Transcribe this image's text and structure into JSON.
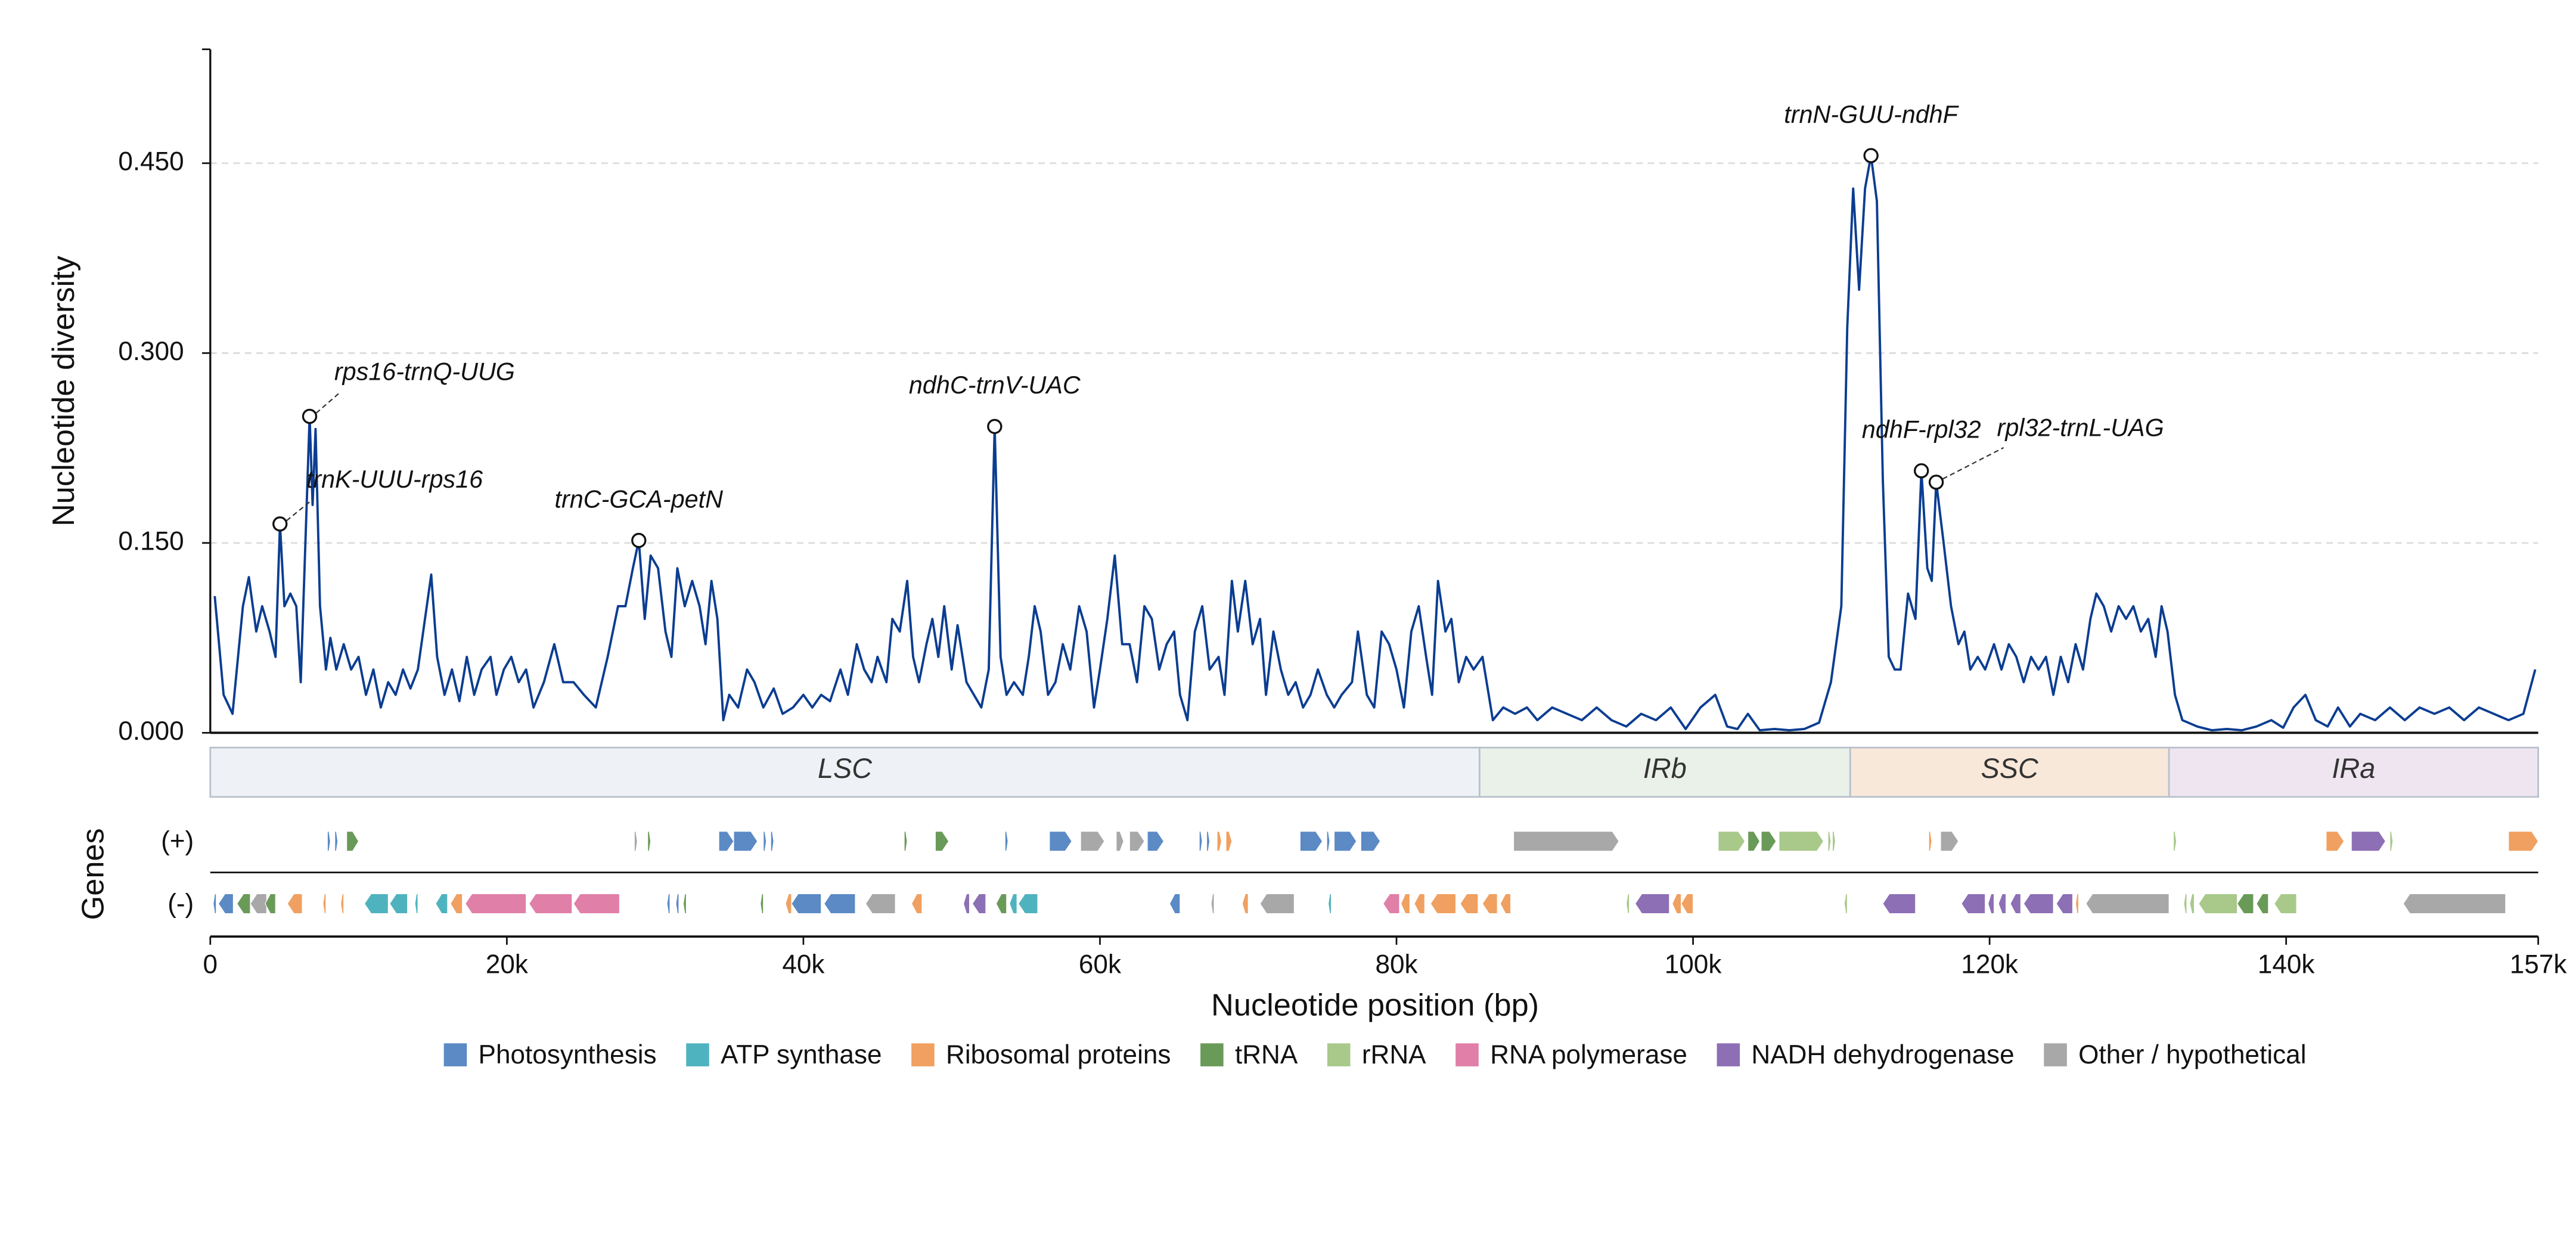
{
  "chart_data": {
    "type": "line",
    "y_label": "Nucleotide diversity",
    "x_label": "Nucleotide position (bp)",
    "genes_label": "Genes",
    "color": "#0b3d91",
    "grid": true,
    "xlim": [
      0,
      157000
    ],
    "ylim": [
      0,
      0.54
    ],
    "xticks": [
      0,
      {
        "value": 20000,
        "label": "20k"
      },
      {
        "value": 40000,
        "label": "40k"
      },
      {
        "value": 60000,
        "label": "60k"
      },
      {
        "value": 80000,
        "label": "80k"
      },
      {
        "value": 100000,
        "label": "100k"
      },
      {
        "value": 120000,
        "label": "120k"
      },
      {
        "value": 140000,
        "label": "140k"
      },
      {
        "value": 157000,
        "label": "157k"
      }
    ],
    "yticks": [
      {
        "value": 0,
        "label": "0.000"
      },
      {
        "value": 0.15,
        "label": "0.150"
      },
      {
        "value": 0.3,
        "label": "0.300"
      },
      {
        "value": 0.45,
        "label": "0.450"
      }
    ],
    "x": [
      300,
      900,
      1500,
      2200,
      2600,
      3100,
      3500,
      4000,
      4400,
      4700,
      5000,
      5400,
      5800,
      6100,
      6700,
      6900,
      7100,
      7400,
      7800,
      8100,
      8500,
      9000,
      9500,
      10000,
      10500,
      11000,
      11500,
      12000,
      12500,
      13000,
      13500,
      14000,
      14600,
      14900,
      15300,
      15800,
      16300,
      16800,
      17300,
      17800,
      18300,
      18900,
      19300,
      19800,
      20300,
      20800,
      21300,
      21800,
      22500,
      23200,
      23800,
      24500,
      25200,
      26000,
      26800,
      27500,
      28000,
      28500,
      28900,
      29300,
      29700,
      30200,
      30700,
      31100,
      31500,
      32000,
      32500,
      33000,
      33400,
      33800,
      34200,
      34600,
      35000,
      35600,
      36200,
      36700,
      37300,
      38000,
      38600,
      39300,
      40000,
      40600,
      41200,
      41800,
      42500,
      43000,
      43600,
      44100,
      44600,
      45000,
      45600,
      46000,
      46500,
      47000,
      47400,
      47800,
      48300,
      48700,
      49100,
      49500,
      50000,
      50400,
      51000,
      51500,
      52000,
      52500,
      52900,
      53300,
      53700,
      54200,
      54800,
      55200,
      55600,
      56000,
      56500,
      57000,
      57500,
      58000,
      58600,
      59100,
      59600,
      60000,
      60500,
      61000,
      61500,
      62000,
      62500,
      63000,
      63500,
      64000,
      64500,
      65000,
      65400,
      65900,
      66400,
      66900,
      67400,
      68000,
      68400,
      68900,
      69300,
      69800,
      70300,
      70800,
      71200,
      71700,
      72200,
      72700,
      73200,
      73700,
      74200,
      74700,
      75300,
      75800,
      76300,
      77000,
      77400,
      78000,
      78500,
      79000,
      79500,
      80000,
      80500,
      81000,
      81500,
      82000,
      82400,
      82800,
      83300,
      83700,
      84200,
      84700,
      85200,
      85800,
      86500,
      87200,
      88000,
      88800,
      89500,
      90500,
      91500,
      92500,
      93500,
      94500,
      95500,
      96500,
      97500,
      98500,
      99500,
      100500,
      101500,
      102300,
      103000,
      103700,
      104500,
      105500,
      106500,
      107500,
      108500,
      109300,
      110000,
      110400,
      110800,
      111200,
      111600,
      112000,
      112400,
      112800,
      113200,
      113600,
      114000,
      114500,
      115000,
      115400,
      115800,
      116100,
      116400,
      116900,
      117400,
      117900,
      118300,
      118700,
      119200,
      119700,
      120300,
      120800,
      121300,
      121800,
      122300,
      122800,
      123300,
      123800,
      124300,
      124800,
      125300,
      125800,
      126300,
      126800,
      127200,
      127700,
      128200,
      128700,
      129200,
      129700,
      130200,
      130700,
      131200,
      131600,
      132000,
      132500,
      133000,
      134000,
      135000,
      136000,
      137000,
      138000,
      139000,
      139800,
      140500,
      141300,
      142000,
      142800,
      143500,
      144300,
      145000,
      146000,
      147000,
      148000,
      149000,
      150000,
      151000,
      152000,
      153000,
      154000,
      155000,
      156000,
      156800
    ],
    "values": [
      0.108,
      0.03,
      0.015,
      0.1,
      0.123,
      0.08,
      0.1,
      0.08,
      0.06,
      0.165,
      0.1,
      0.11,
      0.1,
      0.04,
      0.25,
      0.18,
      0.24,
      0.1,
      0.05,
      0.075,
      0.05,
      0.07,
      0.05,
      0.06,
      0.03,
      0.05,
      0.02,
      0.04,
      0.03,
      0.05,
      0.035,
      0.05,
      0.1,
      0.125,
      0.06,
      0.03,
      0.05,
      0.025,
      0.06,
      0.03,
      0.05,
      0.06,
      0.03,
      0.05,
      0.06,
      0.04,
      0.05,
      0.02,
      0.04,
      0.07,
      0.04,
      0.04,
      0.03,
      0.02,
      0.06,
      0.1,
      0.1,
      0.13,
      0.152,
      0.09,
      0.14,
      0.13,
      0.08,
      0.06,
      0.13,
      0.1,
      0.12,
      0.1,
      0.07,
      0.12,
      0.09,
      0.01,
      0.03,
      0.02,
      0.05,
      0.04,
      0.02,
      0.035,
      0.015,
      0.02,
      0.03,
      0.02,
      0.03,
      0.025,
      0.05,
      0.03,
      0.07,
      0.05,
      0.04,
      0.06,
      0.04,
      0.09,
      0.08,
      0.12,
      0.06,
      0.04,
      0.07,
      0.09,
      0.06,
      0.1,
      0.05,
      0.085,
      0.04,
      0.03,
      0.02,
      0.05,
      0.242,
      0.06,
      0.03,
      0.04,
      0.03,
      0.06,
      0.1,
      0.08,
      0.03,
      0.04,
      0.07,
      0.05,
      0.1,
      0.08,
      0.02,
      0.05,
      0.09,
      0.14,
      0.07,
      0.07,
      0.04,
      0.1,
      0.09,
      0.05,
      0.07,
      0.08,
      0.03,
      0.01,
      0.08,
      0.1,
      0.05,
      0.06,
      0.03,
      0.12,
      0.08,
      0.12,
      0.07,
      0.09,
      0.03,
      0.08,
      0.05,
      0.03,
      0.04,
      0.02,
      0.03,
      0.05,
      0.03,
      0.02,
      0.03,
      0.04,
      0.08,
      0.03,
      0.02,
      0.08,
      0.07,
      0.05,
      0.02,
      0.08,
      0.1,
      0.06,
      0.03,
      0.12,
      0.08,
      0.09,
      0.04,
      0.06,
      0.05,
      0.06,
      0.01,
      0.02,
      0.015,
      0.02,
      0.01,
      0.02,
      0.015,
      0.01,
      0.02,
      0.01,
      0.005,
      0.015,
      0.01,
      0.02,
      0.003,
      0.02,
      0.03,
      0.005,
      0.003,
      0.015,
      0.002,
      0.003,
      0.002,
      0.003,
      0.008,
      0.04,
      0.1,
      0.32,
      0.43,
      0.35,
      0.43,
      0.456,
      0.42,
      0.2,
      0.06,
      0.05,
      0.05,
      0.11,
      0.09,
      0.207,
      0.13,
      0.12,
      0.198,
      0.15,
      0.1,
      0.07,
      0.08,
      0.05,
      0.06,
      0.05,
      0.07,
      0.05,
      0.07,
      0.06,
      0.04,
      0.06,
      0.05,
      0.06,
      0.03,
      0.06,
      0.04,
      0.07,
      0.05,
      0.09,
      0.11,
      0.1,
      0.08,
      0.1,
      0.09,
      0.1,
      0.08,
      0.09,
      0.06,
      0.1,
      0.08,
      0.03,
      0.01,
      0.005,
      0.002,
      0.003,
      0.002,
      0.005,
      0.01,
      0.004,
      0.02,
      0.03,
      0.01,
      0.005,
      0.02,
      0.005,
      0.015,
      0.01,
      0.02,
      0.01,
      0.02,
      0.015,
      0.02,
      0.01,
      0.02,
      0.015,
      0.01,
      0.015,
      0.05
    ],
    "annotations": [
      {
        "text": "trnK-UUU-rps16",
        "x": 4700,
        "y": 0.165
      },
      {
        "text": "rps16-trnQ-UUG",
        "x": 6700,
        "y": 0.25
      },
      {
        "text": "trnC-GCA-petN",
        "x": 28900,
        "y": 0.152
      },
      {
        "text": "ndhC-trnV-UAC",
        "x": 52900,
        "y": 0.242
      },
      {
        "text": "trnN-GUU-ndhF",
        "x": 112000,
        "y": 0.456
      },
      {
        "text": "ndhF-rpl32",
        "x": 115400,
        "y": 0.207
      },
      {
        "text": "rpl32-trnL-UAG",
        "x": 116400,
        "y": 0.198
      }
    ],
    "regions": [
      {
        "name": "LSC",
        "start": 0,
        "end": 85600,
        "color": "#eef2f6"
      },
      {
        "name": "IRb",
        "start": 85600,
        "end": 110600,
        "color": "#eaf1e8"
      },
      {
        "name": "SSC",
        "start": 110600,
        "end": 132100,
        "color": "#f8e8da"
      },
      {
        "name": "IRa",
        "start": 132100,
        "end": 157000,
        "color": "#efe5f1"
      }
    ],
    "gene_categories": [
      {
        "name": "Photosynthesis",
        "color": "#5b8ac5"
      },
      {
        "name": "ATP synthase",
        "color": "#4fb3bf"
      },
      {
        "name": "Ribosomal proteins",
        "color": "#f0a060"
      },
      {
        "name": "tRNA",
        "color": "#6a9a58"
      },
      {
        "name": "rRNA",
        "color": "#a8c98a"
      },
      {
        "name": "RNA polymerase",
        "color": "#e07fa8"
      },
      {
        "name": "NADH dehydrogenase",
        "color": "#8d6fb5"
      },
      {
        "name": "Other / hypothetical",
        "color": "#a8a8a8"
      }
    ],
    "gene_tracks": [
      {
        "label": "(+)",
        "genes": [
          [
            7900,
            8100,
            0
          ],
          [
            8400,
            8600,
            0
          ],
          [
            9200,
            10000,
            3
          ],
          [
            28600,
            28800,
            7
          ],
          [
            29500,
            29700,
            3
          ],
          [
            34300,
            35300,
            0
          ],
          [
            35300,
            36900,
            0
          ],
          [
            37300,
            37500,
            0
          ],
          [
            37800,
            38000,
            0
          ],
          [
            46800,
            47000,
            3
          ],
          [
            48900,
            49800,
            3
          ],
          [
            53600,
            53800,
            0
          ],
          [
            56600,
            58100,
            0
          ],
          [
            58700,
            60300,
            7
          ],
          [
            61100,
            61600,
            7
          ],
          [
            62000,
            63000,
            7
          ],
          [
            63200,
            64300,
            0
          ],
          [
            66700,
            66900,
            0
          ],
          [
            67200,
            67400,
            0
          ],
          [
            67900,
            68200,
            2
          ],
          [
            68500,
            68900,
            2
          ],
          [
            73500,
            75000,
            0
          ],
          [
            75300,
            75500,
            0
          ],
          [
            75800,
            77300,
            0
          ],
          [
            77600,
            78900,
            0
          ],
          [
            87900,
            95000,
            7
          ],
          [
            101700,
            103500,
            4
          ],
          [
            103700,
            104500,
            3
          ],
          [
            104600,
            105600,
            3
          ],
          [
            105800,
            108800,
            4
          ],
          [
            109100,
            109300,
            4
          ],
          [
            109400,
            109600,
            4
          ],
          [
            115900,
            116100,
            2
          ],
          [
            116700,
            117900,
            7
          ],
          [
            132400,
            132600,
            4
          ],
          [
            142700,
            143900,
            2
          ],
          [
            144400,
            146700,
            6
          ],
          [
            147000,
            147200,
            4
          ],
          [
            155000,
            157000,
            2
          ]
        ]
      },
      {
        "label": "(-)",
        "genes": [
          [
            200,
            400,
            0
          ],
          [
            550,
            1550,
            0
          ],
          [
            1800,
            2700,
            3
          ],
          [
            2700,
            3800,
            7
          ],
          [
            3700,
            4400,
            3
          ],
          [
            5200,
            6200,
            2
          ],
          [
            7600,
            7800,
            2
          ],
          [
            8800,
            9000,
            2
          ],
          [
            10400,
            12000,
            1
          ],
          [
            12100,
            13300,
            1
          ],
          [
            13800,
            14000,
            1
          ],
          [
            15200,
            16000,
            1
          ],
          [
            16200,
            17000,
            2
          ],
          [
            17200,
            21300,
            5
          ],
          [
            21500,
            24400,
            5
          ],
          [
            24500,
            27600,
            5
          ],
          [
            30800,
            31000,
            0
          ],
          [
            31400,
            31600,
            0
          ],
          [
            31900,
            32100,
            3
          ],
          [
            37100,
            37300,
            3
          ],
          [
            38800,
            39200,
            2
          ],
          [
            39200,
            41200,
            0
          ],
          [
            41400,
            43500,
            0
          ],
          [
            44200,
            46200,
            7
          ],
          [
            47300,
            48000,
            2
          ],
          [
            50800,
            51200,
            6
          ],
          [
            51400,
            52300,
            6
          ],
          [
            53000,
            53700,
            3
          ],
          [
            53900,
            54400,
            1
          ],
          [
            54500,
            55800,
            1
          ],
          [
            64700,
            65400,
            0
          ],
          [
            67500,
            67700,
            7
          ],
          [
            69600,
            70000,
            2
          ],
          [
            70800,
            73100,
            7
          ],
          [
            75400,
            75600,
            1
          ],
          [
            79100,
            80200,
            5
          ],
          [
            80300,
            80900,
            2
          ],
          [
            81200,
            81900,
            2
          ],
          [
            82300,
            84000,
            2
          ],
          [
            84300,
            85500,
            2
          ],
          [
            85800,
            86800,
            2
          ],
          [
            87000,
            87700,
            2
          ],
          [
            95500,
            95700,
            4
          ],
          [
            96100,
            98400,
            6
          ],
          [
            98600,
            99200,
            2
          ],
          [
            99200,
            100000,
            2
          ],
          [
            110200,
            110400,
            4
          ],
          [
            112800,
            115000,
            6
          ],
          [
            118100,
            119700,
            6
          ],
          [
            119900,
            120300,
            6
          ],
          [
            120600,
            121100,
            6
          ],
          [
            121400,
            122100,
            6
          ],
          [
            122300,
            124300,
            6
          ],
          [
            124500,
            125600,
            6
          ],
          [
            125800,
            126000,
            2
          ],
          [
            126500,
            132100,
            7
          ],
          [
            133100,
            133300,
            4
          ],
          [
            133500,
            133800,
            4
          ],
          [
            134100,
            136700,
            4
          ],
          [
            136700,
            137800,
            3
          ],
          [
            138000,
            138800,
            3
          ],
          [
            139200,
            140700,
            4
          ],
          [
            147900,
            154800,
            7
          ]
        ]
      }
    ]
  }
}
